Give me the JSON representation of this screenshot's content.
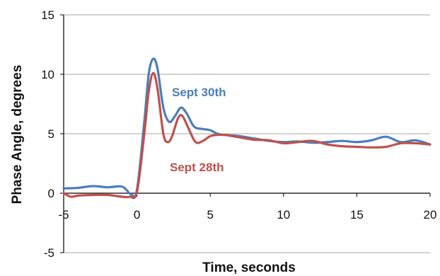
{
  "chart_data": {
    "type": "line",
    "xlabel": "Time, seconds",
    "ylabel": "Phase Angle, degrees",
    "xlim": [
      -5,
      20
    ],
    "ylim": [
      -5,
      15
    ],
    "x_ticks": [
      -5,
      0,
      5,
      10,
      15,
      20
    ],
    "x_tick_labels": [
      "-5",
      "0",
      "5",
      "10",
      "15",
      "20"
    ],
    "y_ticks": [
      -5,
      0,
      5,
      10,
      15
    ],
    "y_tick_labels": [
      "-5",
      "0",
      "5",
      "10",
      "15"
    ],
    "grid": "horizontal",
    "legend": "inline labels",
    "series": [
      {
        "name": "Sept 30th",
        "color": "#4a7ebb",
        "x": [
          -5,
          -4,
          -3,
          -2,
          -1,
          -0.4,
          0,
          0.5,
          0.8,
          1.1,
          1.4,
          1.8,
          2.2,
          2.6,
          3.0,
          3.4,
          3.9,
          4.5,
          5.0,
          5.5,
          6,
          7,
          8,
          9,
          10,
          11,
          12,
          13,
          14,
          15,
          16,
          17,
          18,
          19,
          20
        ],
        "y": [
          0.4,
          0.45,
          0.6,
          0.5,
          0.55,
          -0.1,
          0.3,
          6.0,
          10.0,
          11.3,
          10.5,
          7.2,
          6.0,
          6.5,
          7.2,
          6.7,
          5.6,
          5.4,
          5.3,
          5.0,
          4.9,
          4.8,
          4.6,
          4.4,
          4.3,
          4.35,
          4.25,
          4.3,
          4.4,
          4.3,
          4.45,
          4.75,
          4.3,
          4.45,
          4.1
        ]
      },
      {
        "name": "Sept 28th",
        "color": "#c0504d",
        "x": [
          -5,
          -4.5,
          -4,
          -3,
          -2,
          -1,
          -0.5,
          0,
          0.5,
          0.8,
          1.1,
          1.4,
          1.8,
          2.1,
          2.4,
          2.8,
          3.1,
          3.5,
          4.0,
          4.5,
          5.0,
          5.5,
          6,
          7,
          8,
          9,
          10,
          11,
          12,
          13,
          14,
          15,
          16,
          17,
          18,
          19,
          20
        ],
        "y": [
          0.0,
          -0.3,
          -0.2,
          -0.15,
          -0.15,
          -0.3,
          -0.3,
          0.1,
          5.0,
          8.5,
          10.1,
          8.8,
          5.0,
          4.3,
          4.8,
          6.3,
          6.5,
          5.5,
          4.3,
          4.4,
          4.8,
          4.9,
          4.9,
          4.7,
          4.5,
          4.45,
          4.2,
          4.3,
          4.4,
          4.1,
          3.95,
          3.9,
          3.85,
          3.9,
          4.2,
          4.2,
          4.1
        ]
      }
    ]
  }
}
